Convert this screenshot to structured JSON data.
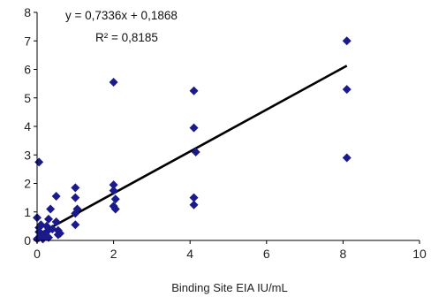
{
  "chart_data": {
    "type": "scatter",
    "xlabel": "Binding Site EIA IU/mL",
    "ylabel": "",
    "xlim": [
      0,
      10
    ],
    "ylim": [
      0,
      8
    ],
    "x_ticks": [
      "0",
      "2",
      "4",
      "6",
      "8",
      "10"
    ],
    "y_ticks": [
      "0",
      "1",
      "2",
      "3",
      "4",
      "5",
      "6",
      "7",
      "8"
    ],
    "grid": false,
    "legend": "none",
    "marker": "diamond",
    "marker_color": "#1a1a8c",
    "trendline_color": "#000000",
    "trendline": {
      "slope": 0.7336,
      "intercept": 0.1868,
      "x_range": [
        0,
        8.1
      ]
    },
    "annotations": {
      "equation": "y = 0,7336x + 0,1868",
      "r_squared": "R² = 0,8185"
    },
    "points": [
      [
        0.05,
        2.75
      ],
      [
        0.0,
        0.05
      ],
      [
        0.05,
        0.1
      ],
      [
        0.1,
        0.25
      ],
      [
        0.15,
        0.05
      ],
      [
        0.2,
        0.2
      ],
      [
        0.05,
        0.45
      ],
      [
        0.1,
        0.55
      ],
      [
        0.0,
        0.8
      ],
      [
        0.05,
        0.3
      ],
      [
        0.3,
        0.1
      ],
      [
        0.25,
        0.5
      ],
      [
        0.3,
        0.75
      ],
      [
        0.35,
        1.1
      ],
      [
        0.25,
        0.3
      ],
      [
        0.4,
        0.4
      ],
      [
        0.5,
        1.55
      ],
      [
        0.5,
        0.65
      ],
      [
        0.55,
        0.2
      ],
      [
        0.55,
        0.35
      ],
      [
        0.6,
        0.25
      ],
      [
        1.0,
        1.85
      ],
      [
        1.0,
        1.5
      ],
      [
        1.05,
        1.1
      ],
      [
        1.0,
        0.95
      ],
      [
        1.0,
        0.55
      ],
      [
        2.0,
        5.55
      ],
      [
        2.0,
        1.95
      ],
      [
        2.0,
        1.75
      ],
      [
        2.05,
        1.45
      ],
      [
        2.0,
        1.2
      ],
      [
        2.05,
        1.1
      ],
      [
        4.1,
        5.25
      ],
      [
        4.1,
        3.95
      ],
      [
        4.15,
        3.1
      ],
      [
        4.1,
        1.5
      ],
      [
        4.1,
        1.25
      ],
      [
        8.1,
        7.0
      ],
      [
        8.1,
        5.3
      ],
      [
        8.1,
        2.9
      ]
    ]
  }
}
